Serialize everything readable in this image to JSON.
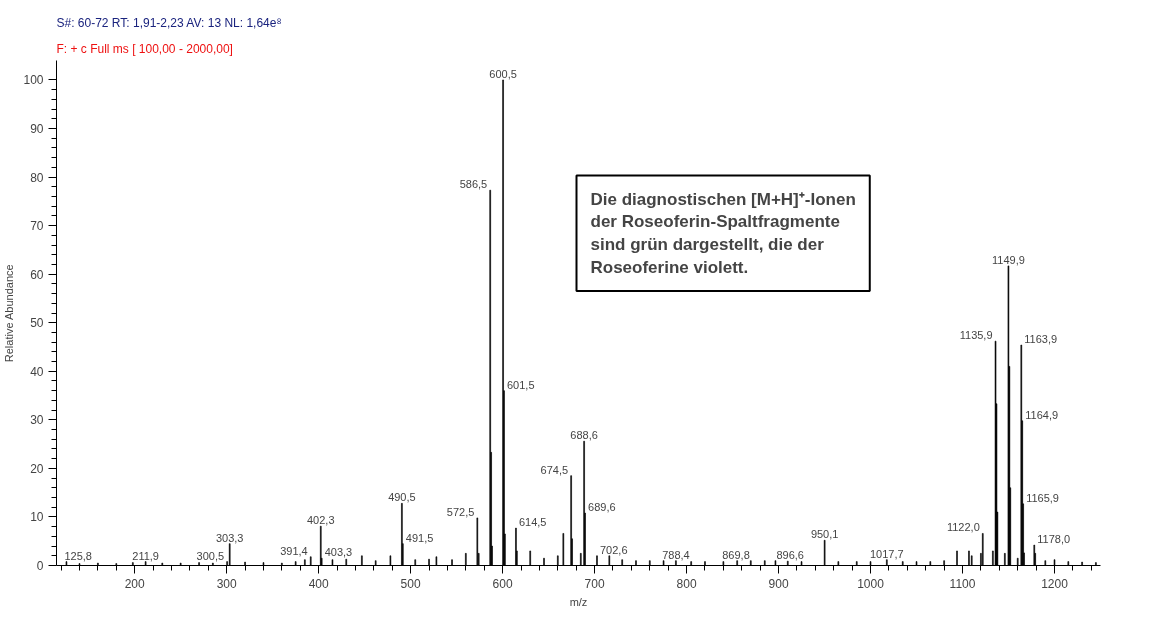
{
  "chart_data": {
    "type": "bar",
    "title": "S#: 60-72   RT: 1,91-2,23   AV: 13   NL: 1,64e⁸",
    "subtitle": "F: + c Full ms [ 100,00 - 2000,00]",
    "xlabel": "m/z",
    "ylabel": "Relative Abundance",
    "x": [
      125.8,
      140,
      160,
      180,
      198,
      211.9,
      230,
      250,
      270,
      285,
      300.5,
      303.3,
      320,
      340,
      360,
      375,
      385,
      391.4,
      402.3,
      403.3,
      415,
      430,
      447,
      462,
      478,
      490.5,
      491.5,
      505,
      520,
      528,
      545,
      560,
      572.5,
      574,
      586.5,
      587.5,
      588.5,
      600.5,
      601.5,
      602.5,
      614.5,
      615.5,
      630,
      645,
      660,
      666,
      674.5,
      675.5,
      685,
      688.6,
      689.6,
      702.6,
      716,
      730,
      745,
      760,
      775,
      788.4,
      805,
      820,
      840,
      855,
      869.8,
      885,
      896.6,
      910,
      925,
      950.1,
      965,
      985,
      1000,
      1017.7,
      1035,
      1050,
      1065,
      1080,
      1094,
      1107,
      1110,
      1120,
      1122.0,
      1133,
      1135.9,
      1136.9,
      1137.9,
      1146,
      1149.9,
      1150.9,
      1151.9,
      1160,
      1163.9,
      1164.9,
      1165.9,
      1166.9,
      1178.0,
      1179,
      1190,
      1200,
      1215,
      1230,
      1245
    ],
    "values": [
      0.8,
      0.4,
      0.5,
      0.4,
      0.6,
      0.8,
      0.5,
      0.5,
      0.6,
      0.5,
      0.8,
      4.5,
      0.7,
      0.6,
      0.5,
      0.8,
      1.2,
      1.8,
      8.1,
      1.5,
      1.2,
      1.3,
      2,
      1,
      2,
      12.8,
      4.5,
      1.2,
      1.3,
      1.8,
      1.2,
      2.5,
      9.8,
      2.5,
      77.3,
      23.3,
      4,
      100,
      36,
      6.5,
      7.7,
      3,
      3,
      1.5,
      2,
      6.6,
      18.5,
      5.5,
      2.5,
      25.6,
      10.8,
      2,
      2,
      1.2,
      1,
      1,
      1,
      1,
      0.8,
      0.8,
      0.8,
      1,
      1,
      1,
      1,
      0.9,
      0.8,
      5.2,
      0.8,
      0.8,
      0.8,
      1.2,
      0.8,
      0.8,
      0.8,
      1,
      3,
      3,
      2,
      2.5,
      6.6,
      3,
      46.2,
      33.3,
      11,
      2.5,
      61.7,
      41,
      16,
      1.5,
      45.4,
      29.8,
      12.7,
      2.6,
      4.2,
      2.5,
      1,
      1.2,
      0.8,
      0.7,
      0.6
    ],
    "color": "#000000",
    "xlim": [
      115,
      1250
    ],
    "ylim": [
      0,
      104
    ],
    "xticks": [
      {
        "value": 120,
        "label": null
      },
      {
        "value": 140,
        "label": null
      },
      {
        "value": 160,
        "label": null
      },
      {
        "value": 180,
        "label": null
      },
      200,
      {
        "value": 220,
        "label": null
      },
      {
        "value": 240,
        "label": null
      },
      {
        "value": 260,
        "label": null
      },
      {
        "value": 280,
        "label": null
      },
      300,
      {
        "value": 320,
        "label": null
      },
      {
        "value": 340,
        "label": null
      },
      {
        "value": 360,
        "label": null
      },
      {
        "value": 380,
        "label": null
      },
      400,
      {
        "value": 420,
        "label": null
      },
      {
        "value": 440,
        "label": null
      },
      {
        "value": 460,
        "label": null
      },
      {
        "value": 480,
        "label": null
      },
      500,
      {
        "value": 520,
        "label": null
      },
      {
        "value": 540,
        "label": null
      },
      {
        "value": 560,
        "label": null
      },
      {
        "value": 580,
        "label": null
      },
      600,
      {
        "value": 620,
        "label": null
      },
      {
        "value": 640,
        "label": null
      },
      {
        "value": 660,
        "label": null
      },
      {
        "value": 680,
        "label": null
      },
      700,
      {
        "value": 720,
        "label": null
      },
      {
        "value": 740,
        "label": null
      },
      {
        "value": 760,
        "label": null
      },
      {
        "value": 780,
        "label": null
      },
      800,
      {
        "value": 820,
        "label": null
      },
      {
        "value": 840,
        "label": null
      },
      {
        "value": 860,
        "label": null
      },
      {
        "value": 880,
        "label": null
      },
      900,
      {
        "value": 920,
        "label": null
      },
      {
        "value": 940,
        "label": null
      },
      {
        "value": 960,
        "label": null
      },
      {
        "value": 980,
        "label": null
      },
      1000,
      {
        "value": 1020,
        "label": null
      },
      {
        "value": 1040,
        "label": null
      },
      {
        "value": 1060,
        "label": null
      },
      {
        "value": 1080,
        "label": null
      },
      1100,
      {
        "value": 1120,
        "label": null
      },
      {
        "value": 1140,
        "label": null
      },
      {
        "value": 1160,
        "label": null
      },
      {
        "value": 1180,
        "label": null
      },
      1200,
      {
        "value": 1220,
        "label": null
      },
      {
        "value": 1240,
        "label": null
      }
    ],
    "yticks": [
      0,
      {
        "value": 2,
        "label": null
      },
      {
        "value": 4,
        "label": null
      },
      {
        "value": 6,
        "label": null
      },
      {
        "value": 8,
        "label": null
      },
      10,
      {
        "value": 12,
        "label": null
      },
      {
        "value": 14,
        "label": null
      },
      {
        "value": 16,
        "label": null
      },
      {
        "value": 18,
        "label": null
      },
      20,
      {
        "value": 22,
        "label": null
      },
      {
        "value": 24,
        "label": null
      },
      {
        "value": 26,
        "label": null
      },
      {
        "value": 28,
        "label": null
      },
      30,
      {
        "value": 32,
        "label": null
      },
      {
        "value": 34,
        "label": null
      },
      {
        "value": 36,
        "label": null
      },
      {
        "value": 38,
        "label": null
      },
      40,
      {
        "value": 42,
        "label": null
      },
      {
        "value": 44,
        "label": null
      },
      {
        "value": 46,
        "label": null
      },
      {
        "value": 48,
        "label": null
      },
      50,
      {
        "value": 52,
        "label": null
      },
      {
        "value": 54,
        "label": null
      },
      {
        "value": 56,
        "label": null
      },
      {
        "value": 58,
        "label": null
      },
      60,
      {
        "value": 62,
        "label": null
      },
      {
        "value": 64,
        "label": null
      },
      {
        "value": 66,
        "label": null
      },
      {
        "value": 68,
        "label": null
      },
      70,
      {
        "value": 72,
        "label": null
      },
      {
        "value": 74,
        "label": null
      },
      {
        "value": 76,
        "label": null
      },
      {
        "value": 78,
        "label": null
      },
      80,
      {
        "value": 82,
        "label": null
      },
      {
        "value": 84,
        "label": null
      },
      {
        "value": 86,
        "label": null
      },
      {
        "value": 88,
        "label": null
      },
      90,
      {
        "value": 92,
        "label": null
      },
      {
        "value": 94,
        "label": null
      },
      {
        "value": 96,
        "label": null
      },
      {
        "value": 98,
        "label": null
      },
      100
    ],
    "annotations": [
      {
        "text": "125,8",
        "x": 125.8,
        "y": 0.8
      },
      {
        "text": "211,9",
        "x": 211.9,
        "y": 0.8
      },
      {
        "text": "300,5",
        "x": 300.5,
        "y": 0.8
      },
      {
        "text": "303,3",
        "x": 303.3,
        "y": 4.5
      },
      {
        "text": "391,4",
        "x": 391.4,
        "y": 1.8
      },
      {
        "text": "402,3",
        "x": 402.3,
        "y": 8.1
      },
      {
        "text": "403,3",
        "x": 403.3,
        "y": 1.5
      },
      {
        "text": "490,5",
        "x": 490.5,
        "y": 12.8
      },
      {
        "text": "491,5",
        "x": 491.5,
        "y": 4.5
      },
      {
        "text": "572,5",
        "x": 572.5,
        "y": 9.8
      },
      {
        "text": "586,5",
        "x": 586.5,
        "y": 77.3
      },
      {
        "text": "600,5",
        "x": 600.5,
        "y": 100
      },
      {
        "text": "601,5",
        "x": 601.5,
        "y": 36
      },
      {
        "text": "614,5",
        "x": 614.5,
        "y": 7.7
      },
      {
        "text": "674,5",
        "x": 674.5,
        "y": 18.5
      },
      {
        "text": "688,6",
        "x": 688.6,
        "y": 25.6
      },
      {
        "text": "689,6",
        "x": 689.6,
        "y": 10.8
      },
      {
        "text": "702,6",
        "x": 702.6,
        "y": 2
      },
      {
        "text": "788,4",
        "x": 788.4,
        "y": 1
      },
      {
        "text": "869,8",
        "x": 869.8,
        "y": 1
      },
      {
        "text": "896,6",
        "x": 896.6,
        "y": 1
      },
      {
        "text": "950,1",
        "x": 950.1,
        "y": 5.2
      },
      {
        "text": "1017,7",
        "x": 1017.7,
        "y": 1.2
      },
      {
        "text": "1122,0",
        "x": 1122.0,
        "y": 6.6
      },
      {
        "text": "1135,9",
        "x": 1135.9,
        "y": 46.2
      },
      {
        "text": "1149,9",
        "x": 1149.9,
        "y": 61.7
      },
      {
        "text": "1163,9",
        "x": 1163.9,
        "y": 45.4
      },
      {
        "text": "1164,9",
        "x": 1164.9,
        "y": 29.8
      },
      {
        "text": "1165,9",
        "x": 1165.9,
        "y": 12.7
      },
      {
        "text": "1178,0",
        "x": 1178.0,
        "y": 4.2
      },
      "Die diagnostischen [M+H]⁺-Ionen\nder Roseoferin-Spaltfragmente\nsind grün dargestellt, die der\nRoseoferine violett."
    ]
  }
}
